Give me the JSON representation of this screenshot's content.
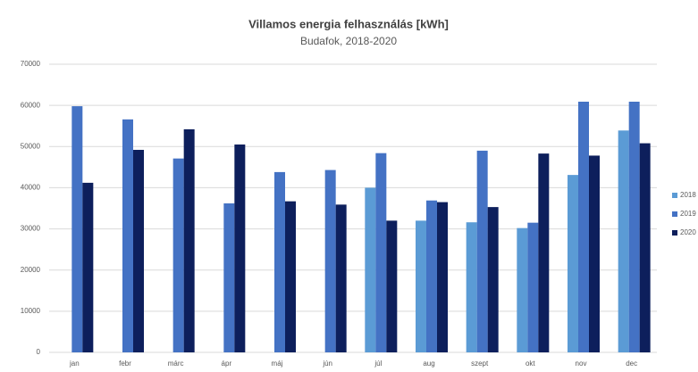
{
  "chart_data": {
    "type": "bar",
    "title": "Villamos energia felhasználás [kWh]",
    "subtitle": "Budafok, 2018-2020",
    "categories": [
      "jan",
      "febr",
      "márc",
      "ápr",
      "máj",
      "jún",
      "júl",
      "aug",
      "szept",
      "okt",
      "nov",
      "dec"
    ],
    "series": [
      {
        "name": "2018",
        "color": "#5b9bd5",
        "values": [
          null,
          null,
          null,
          null,
          null,
          null,
          40000,
          32000,
          31600,
          30200,
          43100,
          53900
        ]
      },
      {
        "name": "2019",
        "color": "#4472c4",
        "values": [
          59800,
          56600,
          47100,
          36200,
          43800,
          44300,
          48400,
          36900,
          49000,
          31500,
          60900,
          60900
        ]
      },
      {
        "name": "2020",
        "color": "#0d1f5c",
        "values": [
          41200,
          49200,
          54200,
          50500,
          36700,
          35900,
          32000,
          36500,
          35300,
          48300,
          47800,
          50800
        ]
      }
    ],
    "ylim": [
      0,
      70000
    ],
    "yticks": [
      0,
      10000,
      20000,
      30000,
      40000,
      50000,
      60000,
      70000
    ],
    "grid": true,
    "legend": "right"
  }
}
